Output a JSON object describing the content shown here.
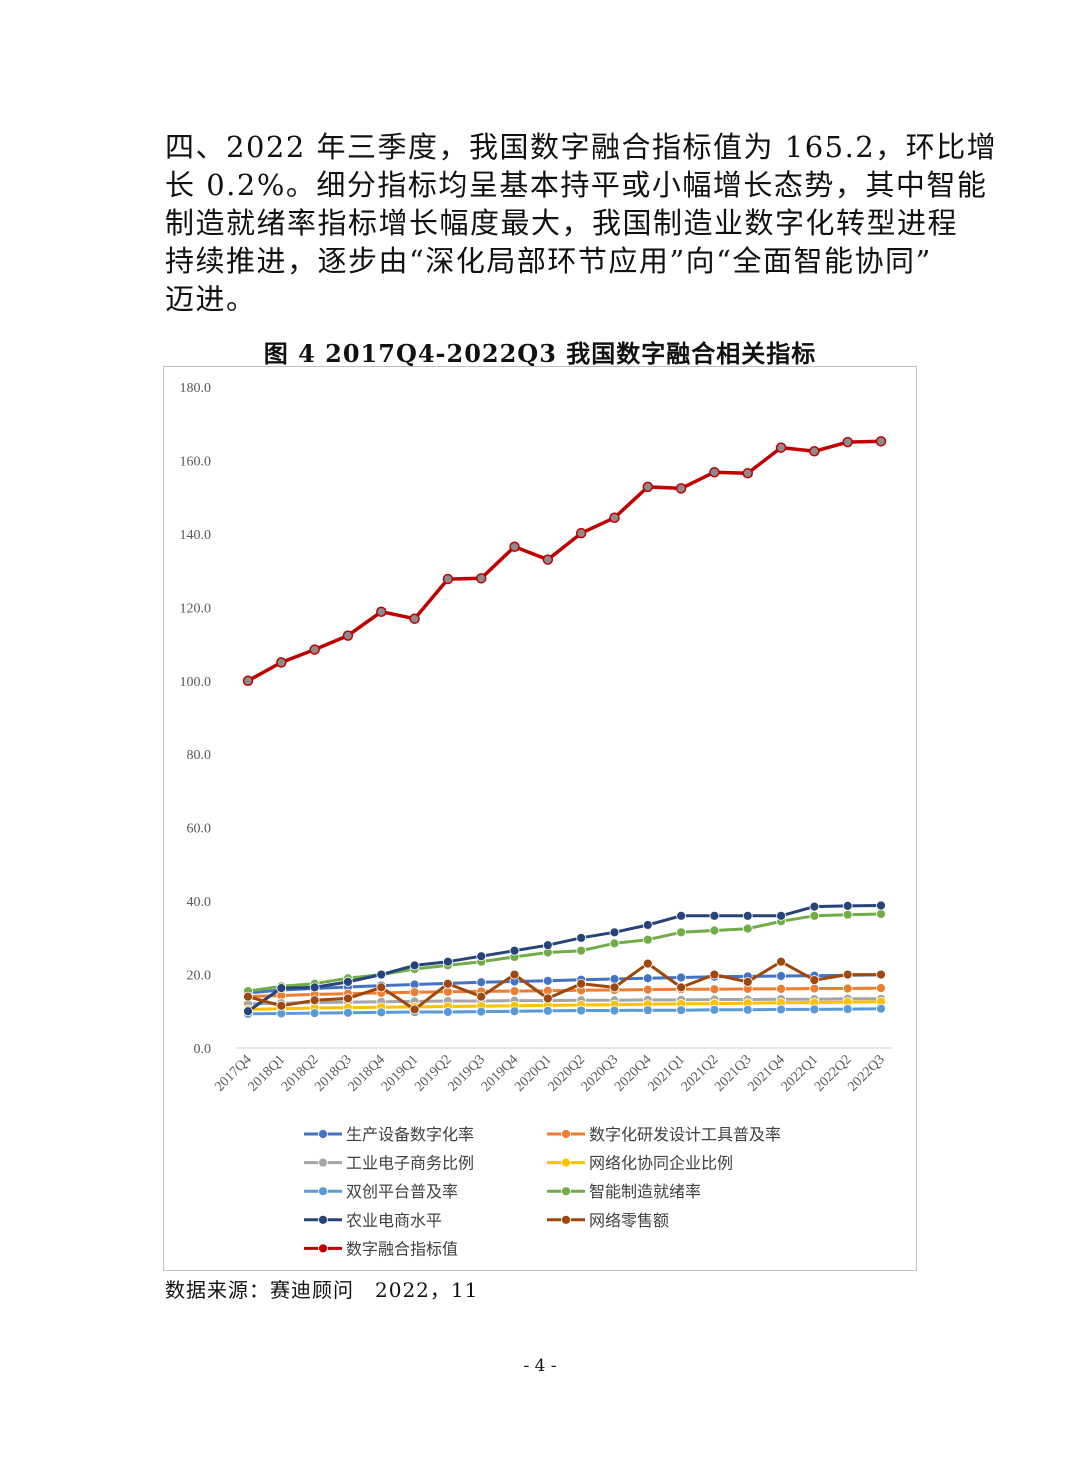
{
  "paragraph": {
    "lines": [
      "四、2022 年三季度，我国数字融合指标值为 165.2，环比增",
      "长 0.2%。细分指标均呈基本持平或小幅增长态势，其中智能",
      "制造就绪率指标增长幅度最大，我国制造业数字化转型进程",
      "持续推进，逐步由“深化局部环节应用”向“全面智能协同”",
      "迈进。"
    ]
  },
  "figure_title": "图 4 2017Q4-2022Q3 我国数字融合相关指标",
  "source": "数据来源：赛迪顾问　2022，11",
  "page_number": "- 4 -",
  "chart_data": {
    "type": "line",
    "ylim": [
      0,
      180
    ],
    "yticks": [
      "0.0",
      "20.0",
      "40.0",
      "60.0",
      "80.0",
      "100.0",
      "120.0",
      "140.0",
      "160.0",
      "180.0"
    ],
    "grid": false,
    "legend_position": "bottom",
    "categories": [
      "2017Q4",
      "2018Q1",
      "2018Q2",
      "2018Q3",
      "2018Q4",
      "2019Q1",
      "2019Q2",
      "2019Q3",
      "2019Q4",
      "2020Q1",
      "2020Q2",
      "2020Q3",
      "2020Q4",
      "2021Q1",
      "2021Q2",
      "2021Q3",
      "2021Q4",
      "2022Q1",
      "2022Q2",
      "2022Q3"
    ],
    "series": [
      {
        "name": "生产设备数字化率",
        "color": "#4472C4",
        "values": [
          15.0,
          15.8,
          16.2,
          16.6,
          17.0,
          17.3,
          17.6,
          17.9,
          18.1,
          18.3,
          18.6,
          18.8,
          19.0,
          19.2,
          19.4,
          19.5,
          19.6,
          19.7,
          19.8,
          19.9
        ]
      },
      {
        "name": "数字化研发设计工具普及率",
        "color": "#ED7D31",
        "values": [
          14.0,
          14.3,
          14.6,
          14.8,
          15.0,
          15.2,
          15.3,
          15.4,
          15.5,
          15.6,
          15.7,
          15.8,
          15.9,
          16.0,
          16.0,
          16.1,
          16.1,
          16.2,
          16.2,
          16.3
        ]
      },
      {
        "name": "工业电子商务比例",
        "color": "#A5A5A5",
        "values": [
          12.0,
          12.2,
          12.4,
          12.5,
          12.6,
          12.7,
          12.8,
          12.8,
          12.9,
          12.9,
          13.0,
          13.0,
          13.1,
          13.1,
          13.2,
          13.2,
          13.3,
          13.3,
          13.4,
          13.4
        ]
      },
      {
        "name": "网络化协同企业比例",
        "color": "#FFC000",
        "values": [
          10.5,
          10.7,
          10.9,
          11.0,
          11.1,
          11.2,
          11.3,
          11.4,
          11.5,
          11.6,
          11.7,
          11.8,
          11.9,
          12.0,
          12.1,
          12.2,
          12.3,
          12.4,
          12.5,
          12.6
        ]
      },
      {
        "name": "双创平台普及率",
        "color": "#5B9BD5",
        "values": [
          9.3,
          9.4,
          9.5,
          9.6,
          9.7,
          9.8,
          9.8,
          9.9,
          10.0,
          10.1,
          10.2,
          10.2,
          10.3,
          10.3,
          10.4,
          10.4,
          10.5,
          10.5,
          10.6,
          10.7
        ]
      },
      {
        "name": "智能制造就绪率",
        "color": "#70AD47",
        "values": [
          15.5,
          16.8,
          17.5,
          19.0,
          20.0,
          21.5,
          22.5,
          23.5,
          24.8,
          26.0,
          26.5,
          28.5,
          29.5,
          31.5,
          32.0,
          32.5,
          34.5,
          36.0,
          36.3,
          36.5
        ]
      },
      {
        "name": "农业电商水平",
        "color": "#264478",
        "values": [
          10.0,
          16.3,
          16.5,
          18.0,
          20.0,
          22.5,
          23.5,
          25.0,
          26.5,
          28.0,
          30.0,
          31.5,
          33.5,
          36.0,
          36.0,
          36.0,
          36.0,
          38.5,
          38.7,
          38.8
        ]
      },
      {
        "name": "网络零售额",
        "color": "#9E480E",
        "values": [
          14.0,
          11.5,
          13.0,
          13.5,
          16.5,
          10.5,
          17.5,
          14.0,
          20.0,
          13.5,
          17.5,
          16.5,
          23.0,
          16.5,
          20.0,
          18.0,
          23.5,
          18.5,
          20.0,
          20.0
        ]
      },
      {
        "name": "数字融合指标值",
        "color": "#C00000",
        "values": [
          100.0,
          105.0,
          108.5,
          112.3,
          118.8,
          116.9,
          127.7,
          127.9,
          136.5,
          133.0,
          140.2,
          144.4,
          152.8,
          152.4,
          156.8,
          156.5,
          163.5,
          162.5,
          165.0,
          165.2
        ]
      }
    ]
  }
}
